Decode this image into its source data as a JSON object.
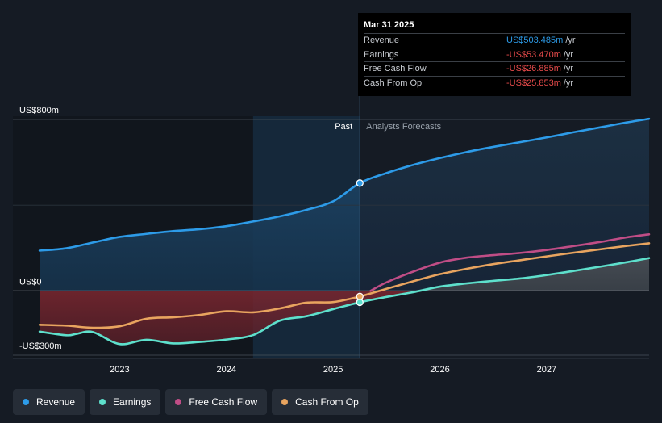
{
  "chart_data": {
    "type": "area",
    "x_unit": "year",
    "xlim": [
      2022.0,
      2027.96
    ],
    "ylim": [
      -315,
      815
    ],
    "y_tick_labels": [
      {
        "value": 800,
        "label": "US$800m"
      },
      {
        "value": 0,
        "label": "US$0"
      },
      {
        "value": -300,
        "label": "-US$300m"
      }
    ],
    "x_tick_labels": [
      "2023",
      "2024",
      "2025",
      "2026",
      "2027"
    ],
    "x_tick_values": [
      2023,
      2024,
      2025,
      2026,
      2027
    ],
    "past_label": "Past",
    "forecast_label": "Analysts Forecasts",
    "divider_x": 2025.25,
    "shade_from_x": 2024.25,
    "series": [
      {
        "name": "Revenue",
        "color": "#2d9be8",
        "fill": true,
        "x": [
          2022.25,
          2022.5,
          2022.75,
          2023.0,
          2023.25,
          2023.5,
          2023.75,
          2024.0,
          2024.25,
          2024.5,
          2024.75,
          2025.0,
          2025.25,
          2025.5,
          2025.75,
          2026.0,
          2026.25,
          2026.5,
          2026.75,
          2027.0,
          2027.25,
          2027.5,
          2027.75,
          2027.96
        ],
        "y": [
          188,
          199,
          226,
          252,
          266,
          279,
          288,
          302,
          324,
          348,
          378,
          418,
          503,
          550,
          588,
          620,
          648,
          672,
          694,
          716,
          740,
          763,
          786,
          803
        ]
      },
      {
        "name": "Earnings",
        "color": "#5ee0cc",
        "fill": false,
        "x": [
          2022.25,
          2022.5,
          2022.6,
          2022.75,
          2023.0,
          2023.25,
          2023.5,
          2023.75,
          2024.0,
          2024.25,
          2024.5,
          2024.75,
          2025.0,
          2025.25,
          2025.5,
          2025.75,
          2026.0,
          2026.25,
          2026.5,
          2026.75,
          2027.0,
          2027.25,
          2027.5,
          2027.75,
          2027.96
        ],
        "y": [
          -190,
          -207,
          -200,
          -192,
          -248,
          -228,
          -245,
          -238,
          -227,
          -206,
          -139,
          -118,
          -85,
          -53,
          -28,
          -6,
          20,
          35,
          47,
          58,
          74,
          93,
          113,
          134,
          153
        ]
      },
      {
        "name": "Free Cash Flow",
        "color": "#c04d86",
        "fill": false,
        "x": [
          2025.35,
          2025.5,
          2025.75,
          2026.0,
          2026.25,
          2026.5,
          2026.75,
          2027.0,
          2027.25,
          2027.5,
          2027.75,
          2027.96
        ],
        "y": [
          0,
          40,
          90,
          132,
          155,
          167,
          177,
          191,
          209,
          228,
          250,
          264
        ]
      },
      {
        "name": "Cash From Op",
        "color": "#e8a45f",
        "fill": false,
        "x": [
          2022.25,
          2022.5,
          2022.75,
          2023.0,
          2023.25,
          2023.5,
          2023.75,
          2024.0,
          2024.25,
          2024.5,
          2024.75,
          2025.0,
          2025.25,
          2025.5,
          2025.75,
          2026.0,
          2026.25,
          2026.5,
          2026.75,
          2027.0,
          2027.25,
          2027.5,
          2027.75,
          2027.96
        ],
        "y": [
          -158,
          -162,
          -172,
          -165,
          -130,
          -123,
          -112,
          -95,
          -100,
          -82,
          -55,
          -52,
          -26,
          10,
          45,
          78,
          103,
          125,
          143,
          161,
          178,
          194,
          210,
          222
        ]
      }
    ],
    "markers": [
      {
        "series": "Revenue",
        "x": 2025.25,
        "y": 503
      },
      {
        "series": "Earnings",
        "x": 2025.25,
        "y": -53
      },
      {
        "series": "Cash From Op",
        "x": 2025.25,
        "y": -26
      }
    ]
  },
  "tooltip": {
    "date": "Mar 31 2025",
    "rows": [
      {
        "label": "Revenue",
        "value": "US$503.485m",
        "unit": "/yr",
        "color": "#2d9be8"
      },
      {
        "label": "Earnings",
        "value": "-US$53.470m",
        "unit": "/yr",
        "color": "#e84b4b"
      },
      {
        "label": "Free Cash Flow",
        "value": "-US$26.885m",
        "unit": "/yr",
        "color": "#e84b4b"
      },
      {
        "label": "Cash From Op",
        "value": "-US$25.853m",
        "unit": "/yr",
        "color": "#e84b4b"
      }
    ]
  },
  "legend": [
    {
      "label": "Revenue",
      "color": "#2d9be8"
    },
    {
      "label": "Earnings",
      "color": "#5ee0cc"
    },
    {
      "label": "Free Cash Flow",
      "color": "#c04d86"
    },
    {
      "label": "Cash From Op",
      "color": "#e8a45f"
    }
  ]
}
